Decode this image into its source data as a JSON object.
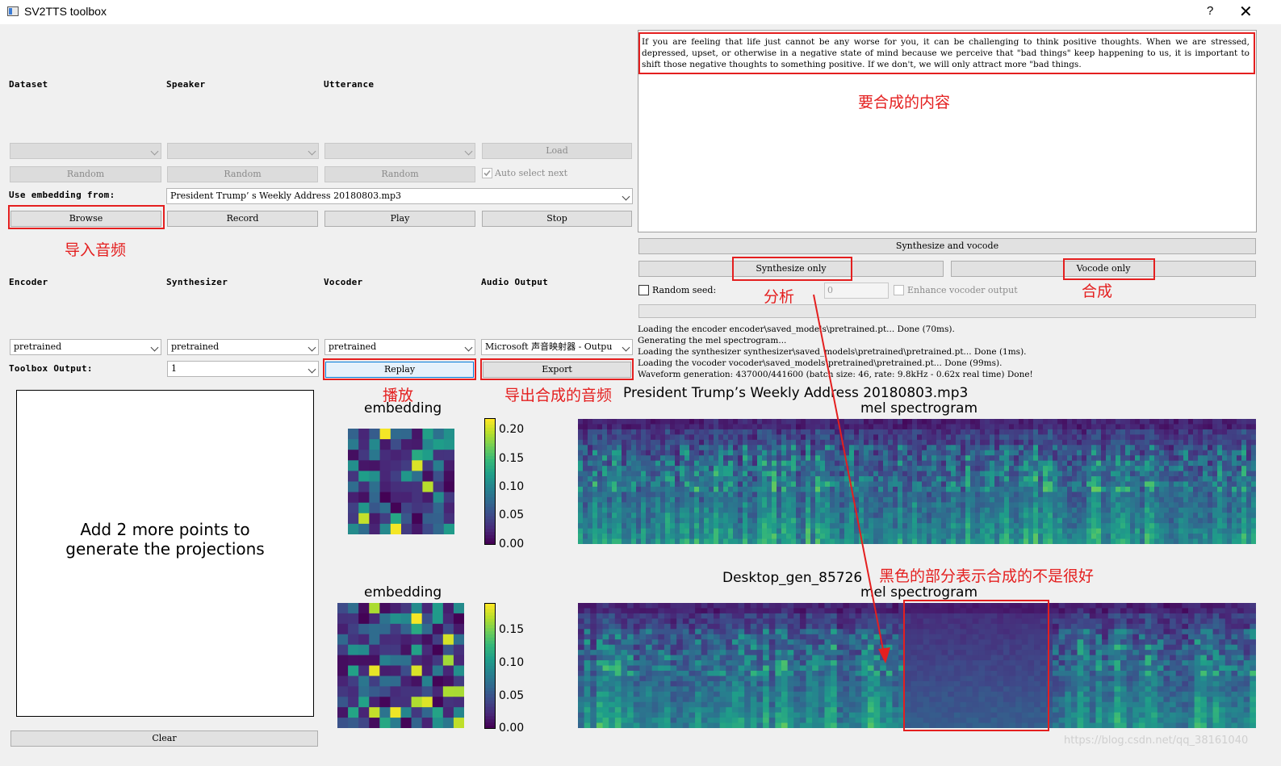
{
  "window": {
    "title": "SV2TTS toolbox",
    "help_label": "?",
    "close_label": "✕"
  },
  "dataset_section": {
    "dataset_label": "Dataset",
    "speaker_label": "Speaker",
    "utterance_label": "Utterance",
    "load_label": "Load",
    "random_label": "Random",
    "auto_select_label": "Auto select next",
    "use_embedding_label": "Use embedding from:",
    "embedding_file": "President Trump’ s Weekly Address 20180803.mp3",
    "browse_label": "Browse",
    "record_label": "Record",
    "play_label": "Play",
    "stop_label": "Stop"
  },
  "models_section": {
    "encoder_label": "Encoder",
    "synthesizer_label": "Synthesizer",
    "vocoder_label": "Vocoder",
    "audio_output_label": "Audio Output",
    "encoder_value": "pretrained",
    "synthesizer_value": "pretrained",
    "vocoder_value": "pretrained",
    "audio_output_value": "Microsoft 声音映射器 - Outpu",
    "toolbox_output_label": "Toolbox Output:",
    "toolbox_output_value": "1",
    "replay_label": "Replay",
    "export_label": "Export"
  },
  "projections": {
    "message_line1": "Add 2 more points to",
    "message_line2": "generate the projections",
    "clear_label": "Clear"
  },
  "text_input": {
    "text": "If you are feeling that life just cannot be any worse for you, it can be challenging to think positive thoughts. When we are stressed, depressed, upset, or otherwise in a negative state of mind because we perceive that \"bad things\" keep happening to us, it is important to shift those negative thoughts to something positive. If we don't, we will only attract more \"bad things."
  },
  "synthesis": {
    "synth_vocode_label": "Synthesize and vocode",
    "synth_only_label": "Synthesize only",
    "vocode_only_label": "Vocode only",
    "random_seed_label": "Random seed:",
    "seed_value": "0",
    "enhance_label": "Enhance vocoder output"
  },
  "log": [
    "Loading the encoder encoder\\saved_models\\pretrained.pt... Done (70ms).",
    "Generating the mel spectrogram...",
    "Loading the synthesizer synthesizer\\saved_models\\pretrained\\pretrained.pt... Done (1ms).",
    "Loading the vocoder vocoder\\saved_models\\pretrained\\pretrained.pt... Done (99ms).",
    "Waveform generation: 437000/441600 (batch size: 46, rate: 9.8kHz - 0.62x real time) Done!"
  ],
  "plots": {
    "top": {
      "filename": "President Trump’s Weekly Address 20180803.mp3",
      "embedding_title": "embedding",
      "mel_title": "mel spectrogram",
      "colorbar_ticks": [
        "0.20",
        "0.15",
        "0.10",
        "0.05",
        "0.00"
      ]
    },
    "bottom": {
      "filename": "Desktop_gen_85726",
      "embedding_title": "embedding",
      "mel_title": "mel spectrogram",
      "colorbar_ticks": [
        "0.15",
        "0.10",
        "0.05",
        "0.00"
      ]
    }
  },
  "annotations": {
    "import_audio": "导入音频",
    "content_to_synthesize": "要合成的内容",
    "analyze": "分析",
    "synthesize": "合成",
    "play": "播放",
    "export_audio": "导出合成的音频",
    "black_part_note": "黑色的部分表示合成的不是很好"
  },
  "watermark": "https://blog.csdn.net/qq_38161040",
  "colors": {
    "annotation_red": "#e41f1f",
    "viridis_dark": "#440154",
    "viridis_yellow": "#fde725"
  }
}
